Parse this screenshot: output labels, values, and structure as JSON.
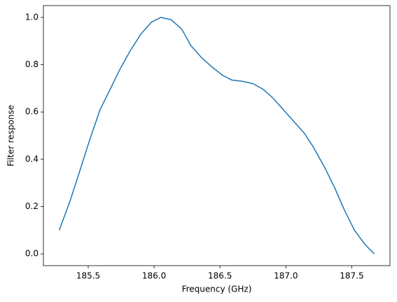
{
  "chart_data": {
    "type": "line",
    "xlabel": "Frequency (GHz)",
    "ylabel": "Filter response",
    "x": [
      185.28,
      185.36,
      185.43,
      185.51,
      185.59,
      185.67,
      185.74,
      185.82,
      185.9,
      185.98,
      186.05,
      186.13,
      186.21,
      186.28,
      186.36,
      186.44,
      186.52,
      186.59,
      186.67,
      186.75,
      186.83,
      186.9,
      186.98,
      187.06,
      187.14,
      187.21,
      187.29,
      187.37,
      187.44,
      187.52,
      187.6,
      187.67
    ],
    "values": [
      0.1,
      0.22,
      0.34,
      0.48,
      0.61,
      0.7,
      0.78,
      0.86,
      0.93,
      0.98,
      1.0,
      0.99,
      0.95,
      0.88,
      0.83,
      0.79,
      0.755,
      0.735,
      0.73,
      0.72,
      0.695,
      0.66,
      0.61,
      0.56,
      0.51,
      0.45,
      0.37,
      0.28,
      0.19,
      0.1,
      0.04,
      0.0
    ],
    "color": "#1f77b4",
    "xlim": [
      185.16,
      187.79
    ],
    "xticks": [
      {
        "value": 185.5,
        "label": "185.5"
      },
      {
        "value": 186.0,
        "label": "186.0"
      },
      {
        "value": 186.5,
        "label": "186.5"
      },
      {
        "value": 187.0,
        "label": "187.0"
      },
      {
        "value": 187.5,
        "label": "187.5"
      }
    ],
    "ylim": [
      -0.05,
      1.05
    ],
    "yticks": [
      {
        "value": 0,
        "label": "0.0"
      },
      {
        "value": 0.2,
        "label": "0.2"
      },
      {
        "value": 0.4,
        "label": "0.4"
      },
      {
        "value": 0.6,
        "label": "0.6"
      },
      {
        "value": 0.8,
        "label": "0.8"
      },
      {
        "value": 1.0,
        "label": "1.0"
      }
    ]
  }
}
